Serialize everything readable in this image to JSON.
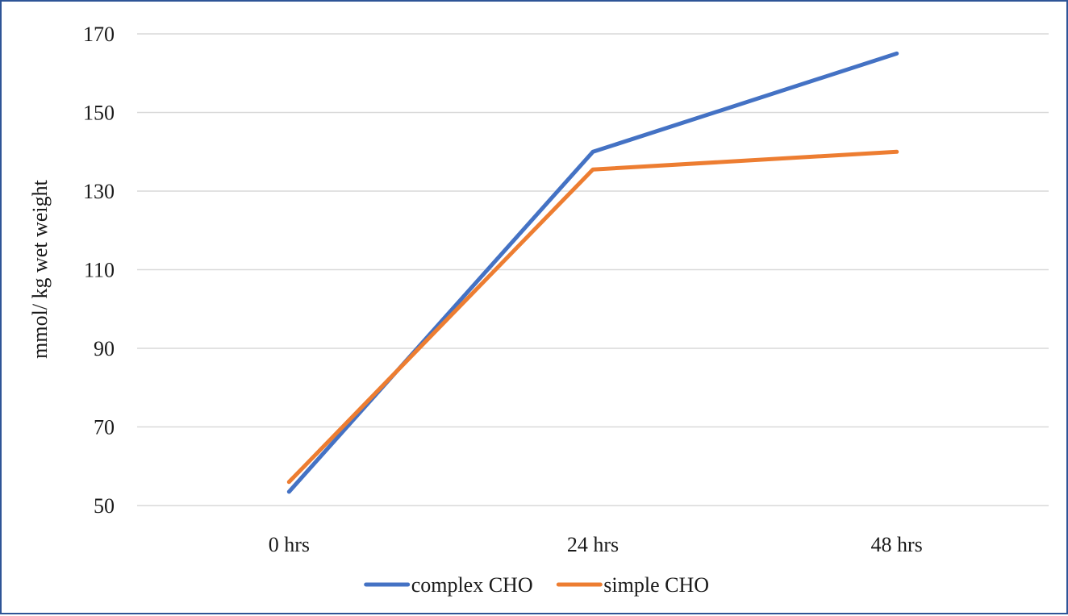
{
  "chart_data": {
    "type": "line",
    "categories": [
      "0 hrs",
      "24 hrs",
      "48 hrs"
    ],
    "series": [
      {
        "name": "complex CHO",
        "values": [
          53.5,
          140,
          165
        ],
        "color": "#4472c4"
      },
      {
        "name": "simple CHO",
        "values": [
          56,
          135.5,
          140
        ],
        "color": "#ed7d31"
      }
    ],
    "title": "",
    "xlabel": "",
    "ylabel": "mmol/ kg wet weight",
    "ylim": [
      50,
      170
    ],
    "yticks": [
      50,
      70,
      90,
      110,
      130,
      150,
      170
    ],
    "grid": true,
    "legend": "bottom"
  }
}
